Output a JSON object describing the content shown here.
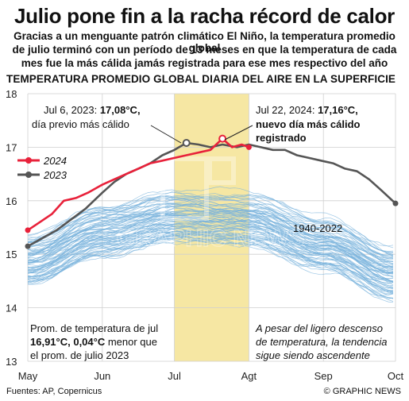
{
  "header": {
    "headline": "Julio pone fin a la racha récord de calor",
    "subtitle_lines": [
      "Gracias a un menguante patrón climático El Niño, la temperatura promedio global",
      "de julio terminó con un período de 13 meses en que la temperatura de cada",
      "mes fue la más cálida jamás registrada para ese mes respectivo del año"
    ]
  },
  "chart_data": {
    "type": "line",
    "title": "TEMPERATURA PROMEDIO GLOBAL DIARIA DEL AIRE EN LA SUPERFICIE",
    "xlabel": "",
    "ylabel": "",
    "x_tick_labels": [
      "May",
      "Jun",
      "Jul",
      "Agt",
      "Sep",
      "Oct"
    ],
    "y_ticks": [
      13,
      14,
      15,
      16,
      17,
      18
    ],
    "ylim": [
      13,
      18
    ],
    "x_domain_days": [
      0,
      153
    ],
    "highlight_month": "Jul",
    "grid": true,
    "legend": {
      "placement": "top-left",
      "entries": [
        "2024",
        "2023"
      ]
    },
    "colors": {
      "2024": "#e8213a",
      "2023": "#555555",
      "historical": "#7ab3dc",
      "highlight": "#f6e7a3"
    },
    "series": [
      {
        "name": "2024",
        "x": [
          0,
          5,
          10,
          15,
          20,
          25,
          31,
          36,
          41,
          46,
          51,
          56,
          61,
          66,
          71,
          76,
          81,
          85,
          89,
          92
        ],
        "y": [
          15.45,
          15.6,
          15.75,
          16.0,
          16.05,
          16.15,
          16.3,
          16.4,
          16.5,
          16.6,
          16.7,
          16.75,
          16.8,
          16.85,
          16.9,
          16.95,
          17.16,
          17.0,
          17.05,
          17.0
        ]
      },
      {
        "name": "2023",
        "x": [
          0,
          6,
          12,
          18,
          24,
          31,
          36,
          41,
          46,
          51,
          56,
          61,
          66,
          71,
          76,
          81,
          87,
          92,
          97,
          102,
          107,
          112,
          117,
          122,
          127,
          132,
          137,
          142,
          147,
          153
        ],
        "y": [
          15.15,
          15.3,
          15.45,
          15.65,
          15.85,
          16.15,
          16.35,
          16.5,
          16.6,
          16.7,
          16.85,
          16.95,
          17.08,
          17.05,
          17.0,
          17.05,
          17.0,
          17.05,
          17.0,
          16.95,
          16.95,
          16.85,
          16.8,
          16.75,
          16.7,
          16.6,
          16.55,
          16.4,
          16.2,
          15.95
        ]
      },
      {
        "name": "1940-2022",
        "x": [
          0,
          31,
          61,
          92,
          123,
          153
        ],
        "y": [
          15.0,
          15.55,
          15.8,
          15.75,
          15.3,
          14.75
        ]
      }
    ],
    "annotations": {
      "jul6_a": "Jul 6, 2023: ",
      "jul6_b": "17,08°C,",
      "jul6_c": "día previo más cálido",
      "jul22_a": "Jul 22, 2024: ",
      "jul22_b": "17,16°C,",
      "jul22_c": "nuevo día más cálido",
      "jul22_d": "registrado",
      "historical_label": "1940-2022",
      "avg_l1": "Prom. de temperatura de jul",
      "avg_l2a": "16,91°C, 0,04°C",
      "avg_l2b": " menor que",
      "avg_l3": "el prom. de julio 2023",
      "trend_l1": "A pesar del ligero descenso",
      "trend_l2": "de temperatura, la tendencia",
      "trend_l3": "sigue siendo ascendente"
    }
  },
  "footer": {
    "sources": "Fuentes: AP, Copernicus",
    "credit": "© GRAPHIC NEWS"
  },
  "watermark": "GRAPHIC NEWS"
}
